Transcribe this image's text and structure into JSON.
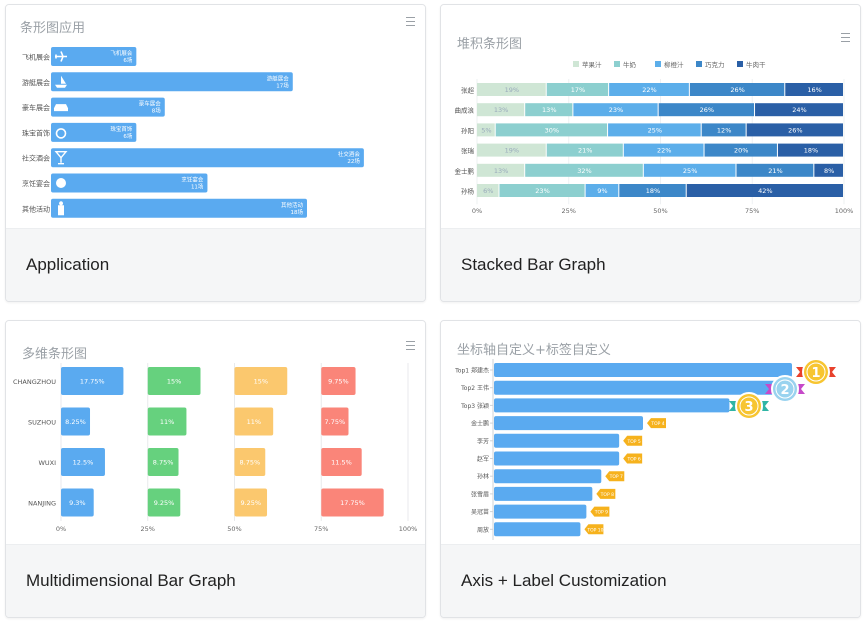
{
  "cards": [
    {
      "id": "application",
      "caption": "Application",
      "title": "条形图应用",
      "chart_data": {
        "type": "bar",
        "orientation": "horizontal",
        "categories": [
          "飞机展会",
          "游艇展会",
          "豪车展会",
          "珠宝首饰",
          "社交酒会",
          "烹饪宴会",
          "其他活动"
        ],
        "bar_labels": [
          "飞机展会",
          "游艇展会",
          "豪车展会",
          "珠宝首饰",
          "社交酒会",
          "烹饪宴会",
          "其他活动"
        ],
        "value_labels": [
          "6场",
          "17场",
          "8场",
          "6场",
          "22场",
          "11场",
          "18场"
        ],
        "values": [
          6,
          17,
          8,
          6,
          22,
          11,
          18
        ],
        "icons": [
          "airplane-icon",
          "yacht-icon",
          "car-icon",
          "ring-icon",
          "cocktail-glass-icon",
          "dining-plate-icon",
          "person-icon"
        ],
        "xlim": [
          0,
          22.5
        ],
        "color": "#5aaaf0"
      }
    },
    {
      "id": "stacked",
      "caption": "Stacked Bar Graph",
      "title": "堆积条形图",
      "chart_data": {
        "type": "bar",
        "stacked": true,
        "orientation": "horizontal",
        "categories": [
          "张超",
          "曲成浪",
          "孙阳",
          "张瑞",
          "金士鹏",
          "孙杨"
        ],
        "series": [
          {
            "name": "苹果汁",
            "color": "#cfe6d5",
            "values": [
              19,
              13,
              5,
              19,
              13,
              6
            ]
          },
          {
            "name": "牛奶",
            "color": "#8ccfcf",
            "values": [
              17,
              13,
              30,
              21,
              32,
              23
            ]
          },
          {
            "name": "柳橙汁",
            "color": "#5caeea",
            "values": [
              22,
              23,
              25,
              22,
              25,
              9
            ]
          },
          {
            "name": "巧克力",
            "color": "#3c87c8",
            "values": [
              26,
              26,
              12,
              20,
              21,
              18
            ]
          },
          {
            "name": "牛肉干",
            "color": "#2a5fa6",
            "values": [
              16,
              24,
              26,
              18,
              8,
              42
            ]
          }
        ],
        "xticks": [
          "0%",
          "25%",
          "50%",
          "75%",
          "100%"
        ],
        "legend": "top-center"
      }
    },
    {
      "id": "multi",
      "caption": "Multidimensional Bar Graph",
      "title": "多维条形图",
      "chart_data": {
        "type": "bar",
        "orientation": "horizontal",
        "panels": 4,
        "categories": [
          "CHANGZHOU",
          "SUZHOU",
          "WUXI",
          "NANJING"
        ],
        "series": [
          {
            "color": "#5aaaf0",
            "values": [
              17.75,
              8.25,
              12.5,
              9.3
            ],
            "labels": [
              "17.75%",
              "8.25%",
              "12.5%",
              "9.3%"
            ]
          },
          {
            "color": "#66d17e",
            "values": [
              15,
              11,
              8.75,
              9.25
            ],
            "labels": [
              "15%",
              "11%",
              "8.75%",
              "9.25%"
            ]
          },
          {
            "color": "#fbc86e",
            "values": [
              15,
              11,
              8.75,
              9.25
            ],
            "labels": [
              "15%",
              "11%",
              "8.75%",
              "9.25%"
            ]
          },
          {
            "color": "#fa8579",
            "values": [
              9.75,
              7.75,
              11.5,
              17.75
            ],
            "labels": [
              "9.75%",
              "7.75%",
              "11.5%",
              "17.75%"
            ]
          }
        ],
        "xticks": [
          "0%",
          "25%",
          "50%",
          "75%",
          "100%"
        ]
      }
    },
    {
      "id": "axis",
      "caption": "Axis + Label Customization",
      "title": "坐标轴自定义+标签自定义",
      "chart_data": {
        "type": "bar",
        "orientation": "horizontal",
        "categories": [
          "Top1 郑建杰",
          "Top2 王伟",
          "Top3 张颖",
          "金士鹏",
          "李芳",
          "赵军",
          "孙林",
          "张雪眉",
          "吴冠苗",
          "周放"
        ],
        "values": [
          100,
          96,
          79,
          50,
          42,
          42,
          36,
          33,
          31,
          29
        ],
        "tags": [
          "",
          "",
          "",
          "TOP 4",
          "TOP 5",
          "TOP 6",
          "TOP 7",
          "TOP 8",
          "TOP 9",
          "TOP 10"
        ],
        "medals": [
          {
            "rank": "1",
            "color": "#f7c531",
            "ribbon": "#e8412c"
          },
          {
            "rank": "2",
            "color": "#9ad3ef",
            "ribbon": "#c649c9"
          },
          {
            "rank": "3",
            "color": "#f7c531",
            "ribbon": "#2fb5a5"
          }
        ],
        "color": "#5aaaf0",
        "tag_color": "#f6b21d"
      }
    }
  ]
}
